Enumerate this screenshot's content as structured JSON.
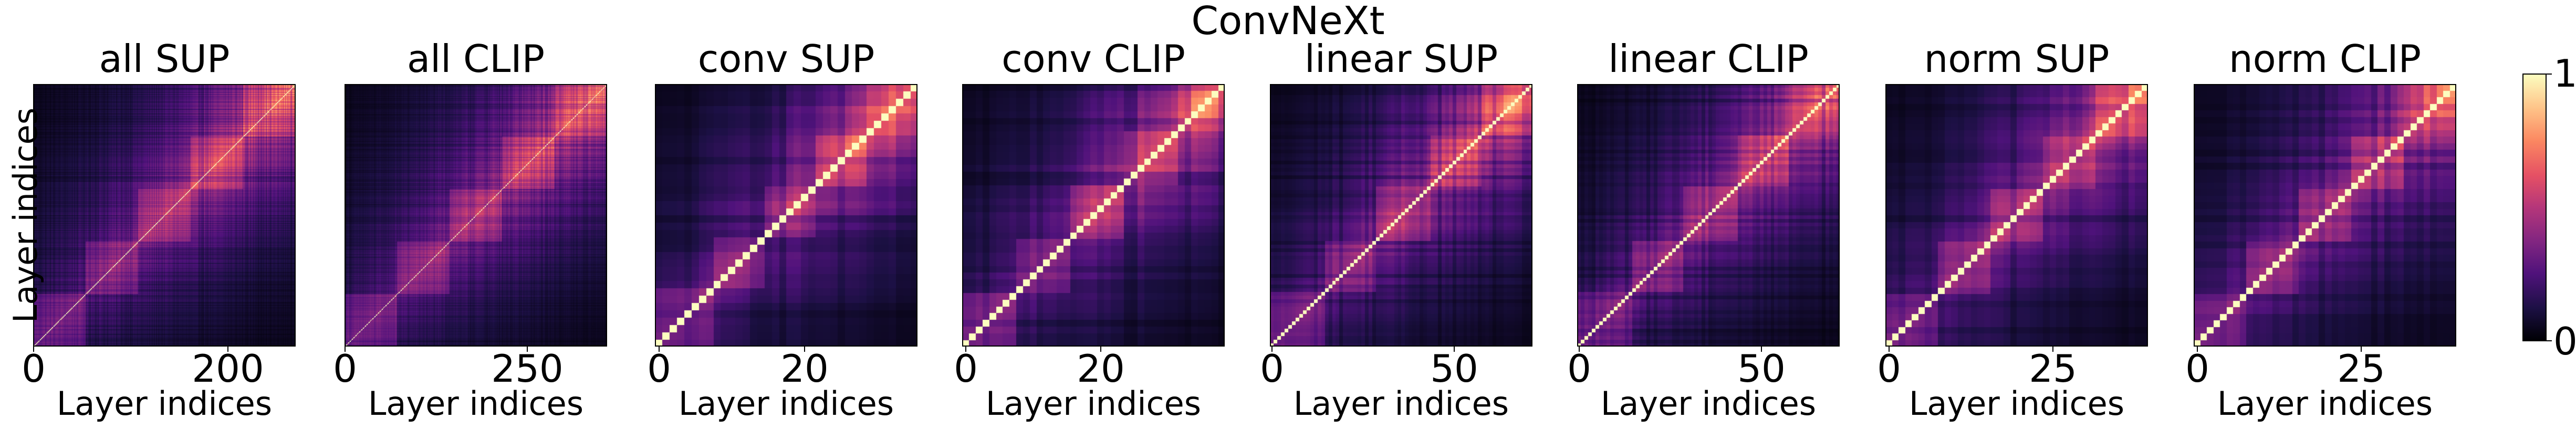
{
  "figure_title": "ConvNeXt",
  "x_axis_label": "Layer indices",
  "y_axis_label": "Layer indices",
  "colorbar": {
    "min_label": "0",
    "max_label": "1",
    "colormap": "magma"
  },
  "chart_data": [
    {
      "type": "heatmap",
      "title": "all SUP",
      "n": 270,
      "xticks": [
        {
          "value": 0,
          "label": "0"
        },
        {
          "value": 200,
          "label": "200"
        }
      ],
      "xlabel": "Layer indices",
      "ylabel": "Layer indices",
      "vmin": 0,
      "vmax": 1,
      "colormap": "magma"
    },
    {
      "type": "heatmap",
      "title": "all CLIP",
      "n": 360,
      "xticks": [
        {
          "value": 0,
          "label": "0"
        },
        {
          "value": 250,
          "label": "250"
        }
      ],
      "xlabel": "Layer indices",
      "ylabel": "",
      "vmin": 0,
      "vmax": 1,
      "colormap": "magma"
    },
    {
      "type": "heatmap",
      "title": "conv SUP",
      "n": 36,
      "xticks": [
        {
          "value": 0,
          "label": "0"
        },
        {
          "value": 20,
          "label": "20"
        }
      ],
      "xlabel": "Layer indices",
      "ylabel": "",
      "vmin": 0,
      "vmax": 1,
      "colormap": "magma"
    },
    {
      "type": "heatmap",
      "title": "conv CLIP",
      "n": 39,
      "xticks": [
        {
          "value": 0,
          "label": "0"
        },
        {
          "value": 20,
          "label": "20"
        }
      ],
      "xlabel": "Layer indices",
      "ylabel": "",
      "vmin": 0,
      "vmax": 1,
      "colormap": "magma"
    },
    {
      "type": "heatmap",
      "title": "linear SUP",
      "n": 72,
      "xticks": [
        {
          "value": 0,
          "label": "0"
        },
        {
          "value": 50,
          "label": "50"
        }
      ],
      "xlabel": "Layer indices",
      "ylabel": "",
      "vmin": 0,
      "vmax": 1,
      "colormap": "magma"
    },
    {
      "type": "heatmap",
      "title": "linear CLIP",
      "n": 72,
      "xticks": [
        {
          "value": 0,
          "label": "0"
        },
        {
          "value": 50,
          "label": "50"
        }
      ],
      "xlabel": "Layer indices",
      "ylabel": "",
      "vmin": 0,
      "vmax": 1,
      "colormap": "magma"
    },
    {
      "type": "heatmap",
      "title": "norm SUP",
      "n": 40,
      "xticks": [
        {
          "value": 0,
          "label": "0"
        },
        {
          "value": 25,
          "label": "25"
        }
      ],
      "xlabel": "Layer indices",
      "ylabel": "",
      "vmin": 0,
      "vmax": 1,
      "colormap": "magma"
    },
    {
      "type": "heatmap",
      "title": "norm CLIP",
      "n": 40,
      "xticks": [
        {
          "value": 0,
          "label": "0"
        },
        {
          "value": 25,
          "label": "25"
        }
      ],
      "xlabel": "Layer indices",
      "ylabel": "",
      "vmin": 0,
      "vmax": 1,
      "colormap": "magma"
    }
  ]
}
